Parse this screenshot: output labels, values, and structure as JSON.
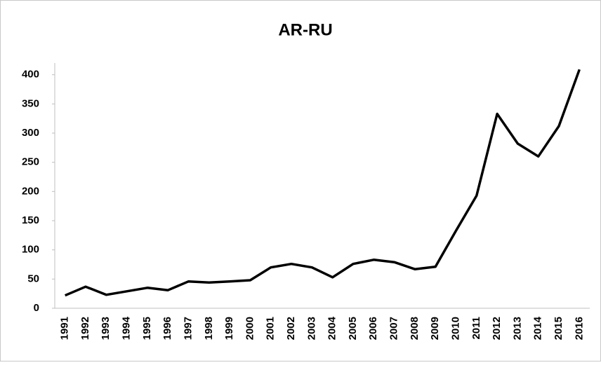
{
  "chart_data": {
    "type": "line",
    "title": "AR-RU",
    "categories": [
      "1991",
      "1992",
      "1993",
      "1994",
      "1995",
      "1996",
      "1997",
      "1998",
      "1999",
      "2000",
      "2001",
      "2002",
      "2003",
      "2004",
      "2005",
      "2006",
      "2007",
      "2008",
      "2009",
      "2010",
      "2011",
      "2012",
      "2013",
      "2014",
      "2015",
      "2016"
    ],
    "values": [
      22,
      37,
      23,
      29,
      35,
      31,
      46,
      44,
      46,
      48,
      70,
      76,
      70,
      53,
      76,
      83,
      79,
      67,
      71,
      133,
      193,
      333,
      282,
      260,
      312,
      409
    ],
    "color": "#000000",
    "ylim": [
      0,
      420
    ],
    "yticks": [
      0,
      50,
      100,
      150,
      200,
      250,
      300,
      350,
      400
    ],
    "grid": false
  }
}
